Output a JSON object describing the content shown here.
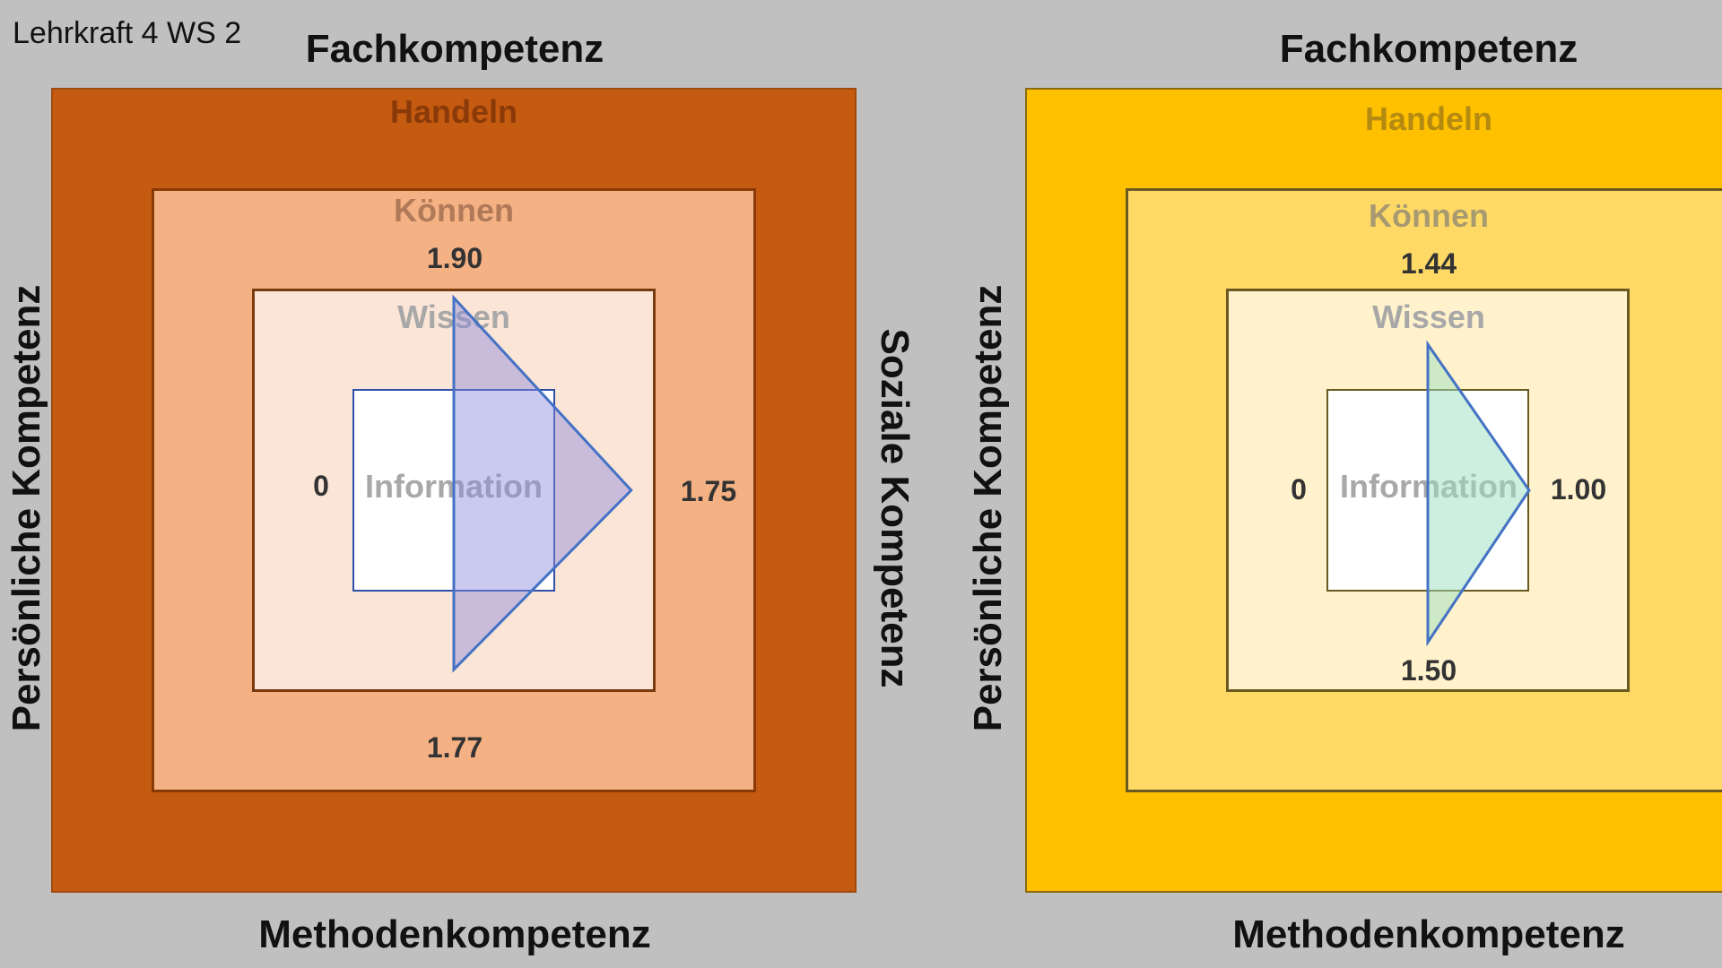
{
  "caption": "Lehrkraft 4 WS 2",
  "colors": {
    "background": "#c0c0c0",
    "left_handeln": "#c55a11",
    "left_koennen": "#f4b183",
    "left_wissen": "#fbe5d6",
    "right_handeln": "#ffc000",
    "right_koennen": "#ffd966",
    "right_wissen": "#fff2cc",
    "information": "#ffffff",
    "triangle_stroke": "#4472c4",
    "left_triangle_fill": "#a9a9e6",
    "right_triangle_fill": "#a8e6cf"
  },
  "diagrams": [
    {
      "axes": {
        "top": "Fachkompetenz",
        "bottom": "Methodenkompetenz",
        "left": "Persönliche Kompetenz",
        "right": "Soziale Kompetenz"
      },
      "layers": {
        "outer": "Handeln",
        "second": "Können",
        "third": "Wissen",
        "inner": "Information"
      },
      "values": {
        "top": "1.90",
        "right": "1.75",
        "bottom": "1.77",
        "left": "0"
      },
      "scores": {
        "top": 1.9,
        "right": 1.75,
        "bottom": 1.77,
        "left": 0
      }
    },
    {
      "axes": {
        "top": "Fachkompetenz",
        "bottom": "Methodenkompetenz",
        "left": "Persönliche Kompetenz"
      },
      "layers": {
        "outer": "Handeln",
        "second": "Können",
        "third": "Wissen",
        "inner": "Information"
      },
      "values": {
        "top": "1.44",
        "right": "1.00",
        "bottom": "1.50",
        "left": "0"
      },
      "scores": {
        "top": 1.44,
        "right": 1.0,
        "bottom": 1.5,
        "left": 0
      }
    }
  ]
}
